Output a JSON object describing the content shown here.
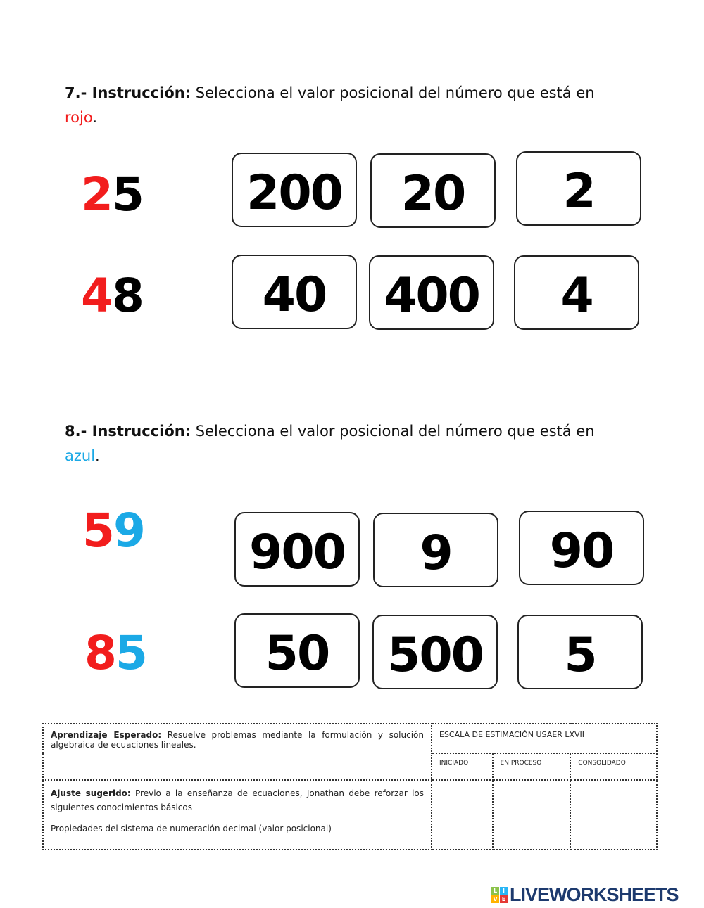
{
  "q7": {
    "number": "7.- ",
    "label": "Instrucción:",
    "text": " Selecciona el valor posicional del número que está en",
    "color_word": "rojo",
    "end": ".",
    "rows": [
      {
        "red": "2",
        "rest": "5",
        "options": [
          "200",
          "20",
          "2"
        ]
      },
      {
        "red": "4",
        "rest": "8",
        "options": [
          "40",
          "400",
          "4"
        ]
      }
    ]
  },
  "q8": {
    "number": "8.- ",
    "label": "Instrucción:",
    "text": " Selecciona el valor posicional del número que está en",
    "color_word": "azul",
    "end": ".",
    "rows": [
      {
        "red": "5",
        "blue": "9",
        "options": [
          "900",
          "9",
          "90"
        ]
      },
      {
        "red": "8",
        "blue": "5",
        "options": [
          "50",
          "500",
          "5"
        ]
      }
    ]
  },
  "table": {
    "aprendizaje_label": "Aprendizaje Esperado:",
    "aprendizaje_text": " Resuelve problemas mediante la formulación y solución algebraica de ecuaciones lineales.",
    "escala": "ESCALA DE ESTIMACIÓN USAER LXVII",
    "levels": [
      "INICIADO",
      "EN PROCESO",
      "CONSOLIDADO"
    ],
    "ajuste_label": "Ajuste sugerido:",
    "ajuste_text": " Previo a la enseñanza de ecuaciones, Jonathan debe reforzar los siguientes conocimientos básicos",
    "propiedades": "Propiedades del sistema de numeración decimal (valor posicional)"
  },
  "logo": {
    "tiles": [
      "L",
      "I",
      "V",
      "E"
    ],
    "word": "LIVEWORKSHEETS"
  },
  "colors": {
    "red": "#f21d1d",
    "blue": "#1ba9e6",
    "logo": "#1d3a6e"
  }
}
